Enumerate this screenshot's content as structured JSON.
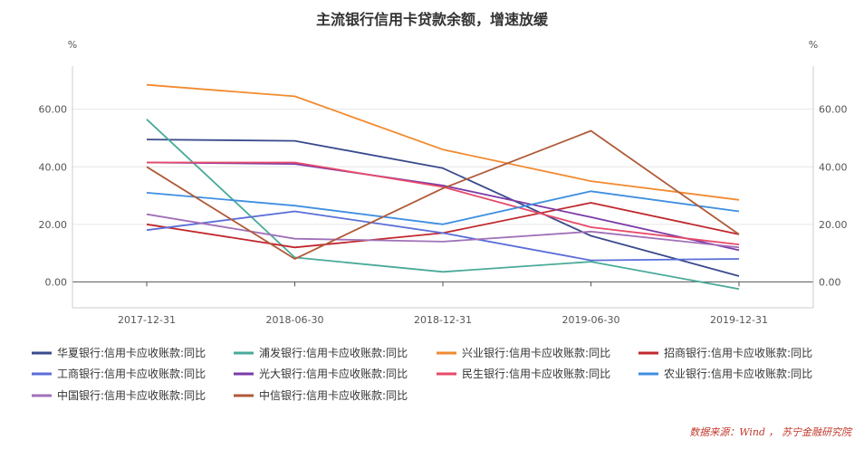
{
  "chart_data": {
    "type": "line",
    "title": "主流银行信用卡贷款余额，增速放缓",
    "ylabel_left": "%",
    "ylabel_right": "%",
    "categories": [
      "2017-12-31",
      "2018-06-30",
      "2018-12-31",
      "2019-06-30",
      "2019-12-31"
    ],
    "ylim": [
      -9,
      75
    ],
    "yticks": [
      0,
      20,
      40,
      60
    ],
    "ytick_labels": [
      "0.00",
      "20.00",
      "40.00",
      "60.00"
    ],
    "grid": true,
    "legend_position": "bottom",
    "series": [
      {
        "name": "华夏银行:信用卡应收账款:同比",
        "color": "#3a4a8c",
        "values": [
          49.5,
          49,
          39.5,
          16,
          2
        ]
      },
      {
        "name": "浦发银行:信用卡应收账款:同比",
        "color": "#4aaa99",
        "values": [
          56.5,
          8.5,
          3.5,
          7,
          -2.5
        ]
      },
      {
        "name": "兴业银行:信用卡应收账款:同比",
        "color": "#f28a30",
        "values": [
          68.5,
          64.5,
          46,
          35,
          28.5
        ]
      },
      {
        "name": "招商银行:信用卡应收账款:同比",
        "color": "#c0282d",
        "values": [
          20,
          12,
          17,
          27.5,
          16.5
        ]
      },
      {
        "name": "工商银行:信用卡应收账款:同比",
        "color": "#5a6ed8",
        "values": [
          18,
          24.5,
          17,
          7.5,
          8
        ]
      },
      {
        "name": "光大银行:信用卡应收账款:同比",
        "color": "#7b3ba8",
        "values": [
          41.5,
          41,
          33.5,
          22.5,
          11
        ]
      },
      {
        "name": "民生银行:信用卡应收账款:同比",
        "color": "#e84a6a",
        "values": [
          41.5,
          41.5,
          33,
          19,
          13
        ]
      },
      {
        "name": "农业银行:信用卡应收账款:同比",
        "color": "#3f8fe0",
        "values": [
          31,
          26.5,
          20,
          31.5,
          24.5
        ]
      },
      {
        "name": "中国银行:信用卡应收账款:同比",
        "color": "#a070b8",
        "values": [
          23.5,
          15,
          14,
          17.5,
          12
        ]
      },
      {
        "name": "中信银行:信用卡应收账款:同比",
        "color": "#b05a38",
        "values": [
          40,
          8,
          32.5,
          52.5,
          16.5
        ]
      }
    ]
  },
  "source": "数据来源：Wind ， 苏宁金融研究院"
}
